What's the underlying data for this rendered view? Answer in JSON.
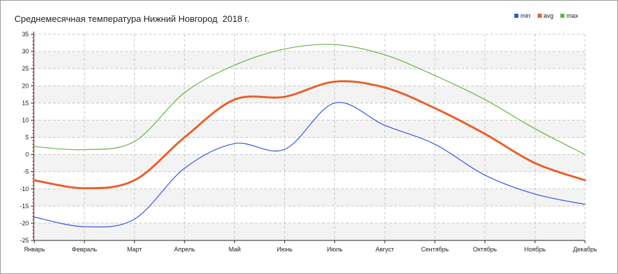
{
  "chart_data": {
    "type": "line",
    "title": "Среднемесячная температура Нижний Новгород  2018 г.",
    "xlabel": "",
    "ylabel": "",
    "categories": [
      "Январь",
      "Февраль",
      "Март",
      "Апрель",
      "Май",
      "Июнь",
      "Июль",
      "Август",
      "Сентябрь",
      "Октябрь",
      "Ноябрь",
      "Декабрь"
    ],
    "ylim": [
      -25,
      35
    ],
    "yticks": [
      -25,
      -20,
      -15,
      -10,
      -5,
      0,
      5,
      10,
      15,
      20,
      25,
      30,
      35
    ],
    "grid": true,
    "legend_position": "top-right",
    "series": [
      {
        "name": "min",
        "color": "#3355dd",
        "values": [
          -18.2,
          -21.0,
          -18.8,
          -4.0,
          3.2,
          1.5,
          15.0,
          8.5,
          3.0,
          -6.0,
          -11.5,
          -14.5
        ]
      },
      {
        "name": "avg",
        "color": "#e8602c",
        "values": [
          -7.5,
          -9.8,
          -7.5,
          5.0,
          16.0,
          16.8,
          21.2,
          19.5,
          13.5,
          6.0,
          -2.5,
          -7.5
        ]
      },
      {
        "name": "max",
        "color": "#66b344",
        "values": [
          2.3,
          1.4,
          3.8,
          18.0,
          26.0,
          30.7,
          32.0,
          29.0,
          23.0,
          16.0,
          7.5,
          0.0
        ]
      }
    ]
  }
}
